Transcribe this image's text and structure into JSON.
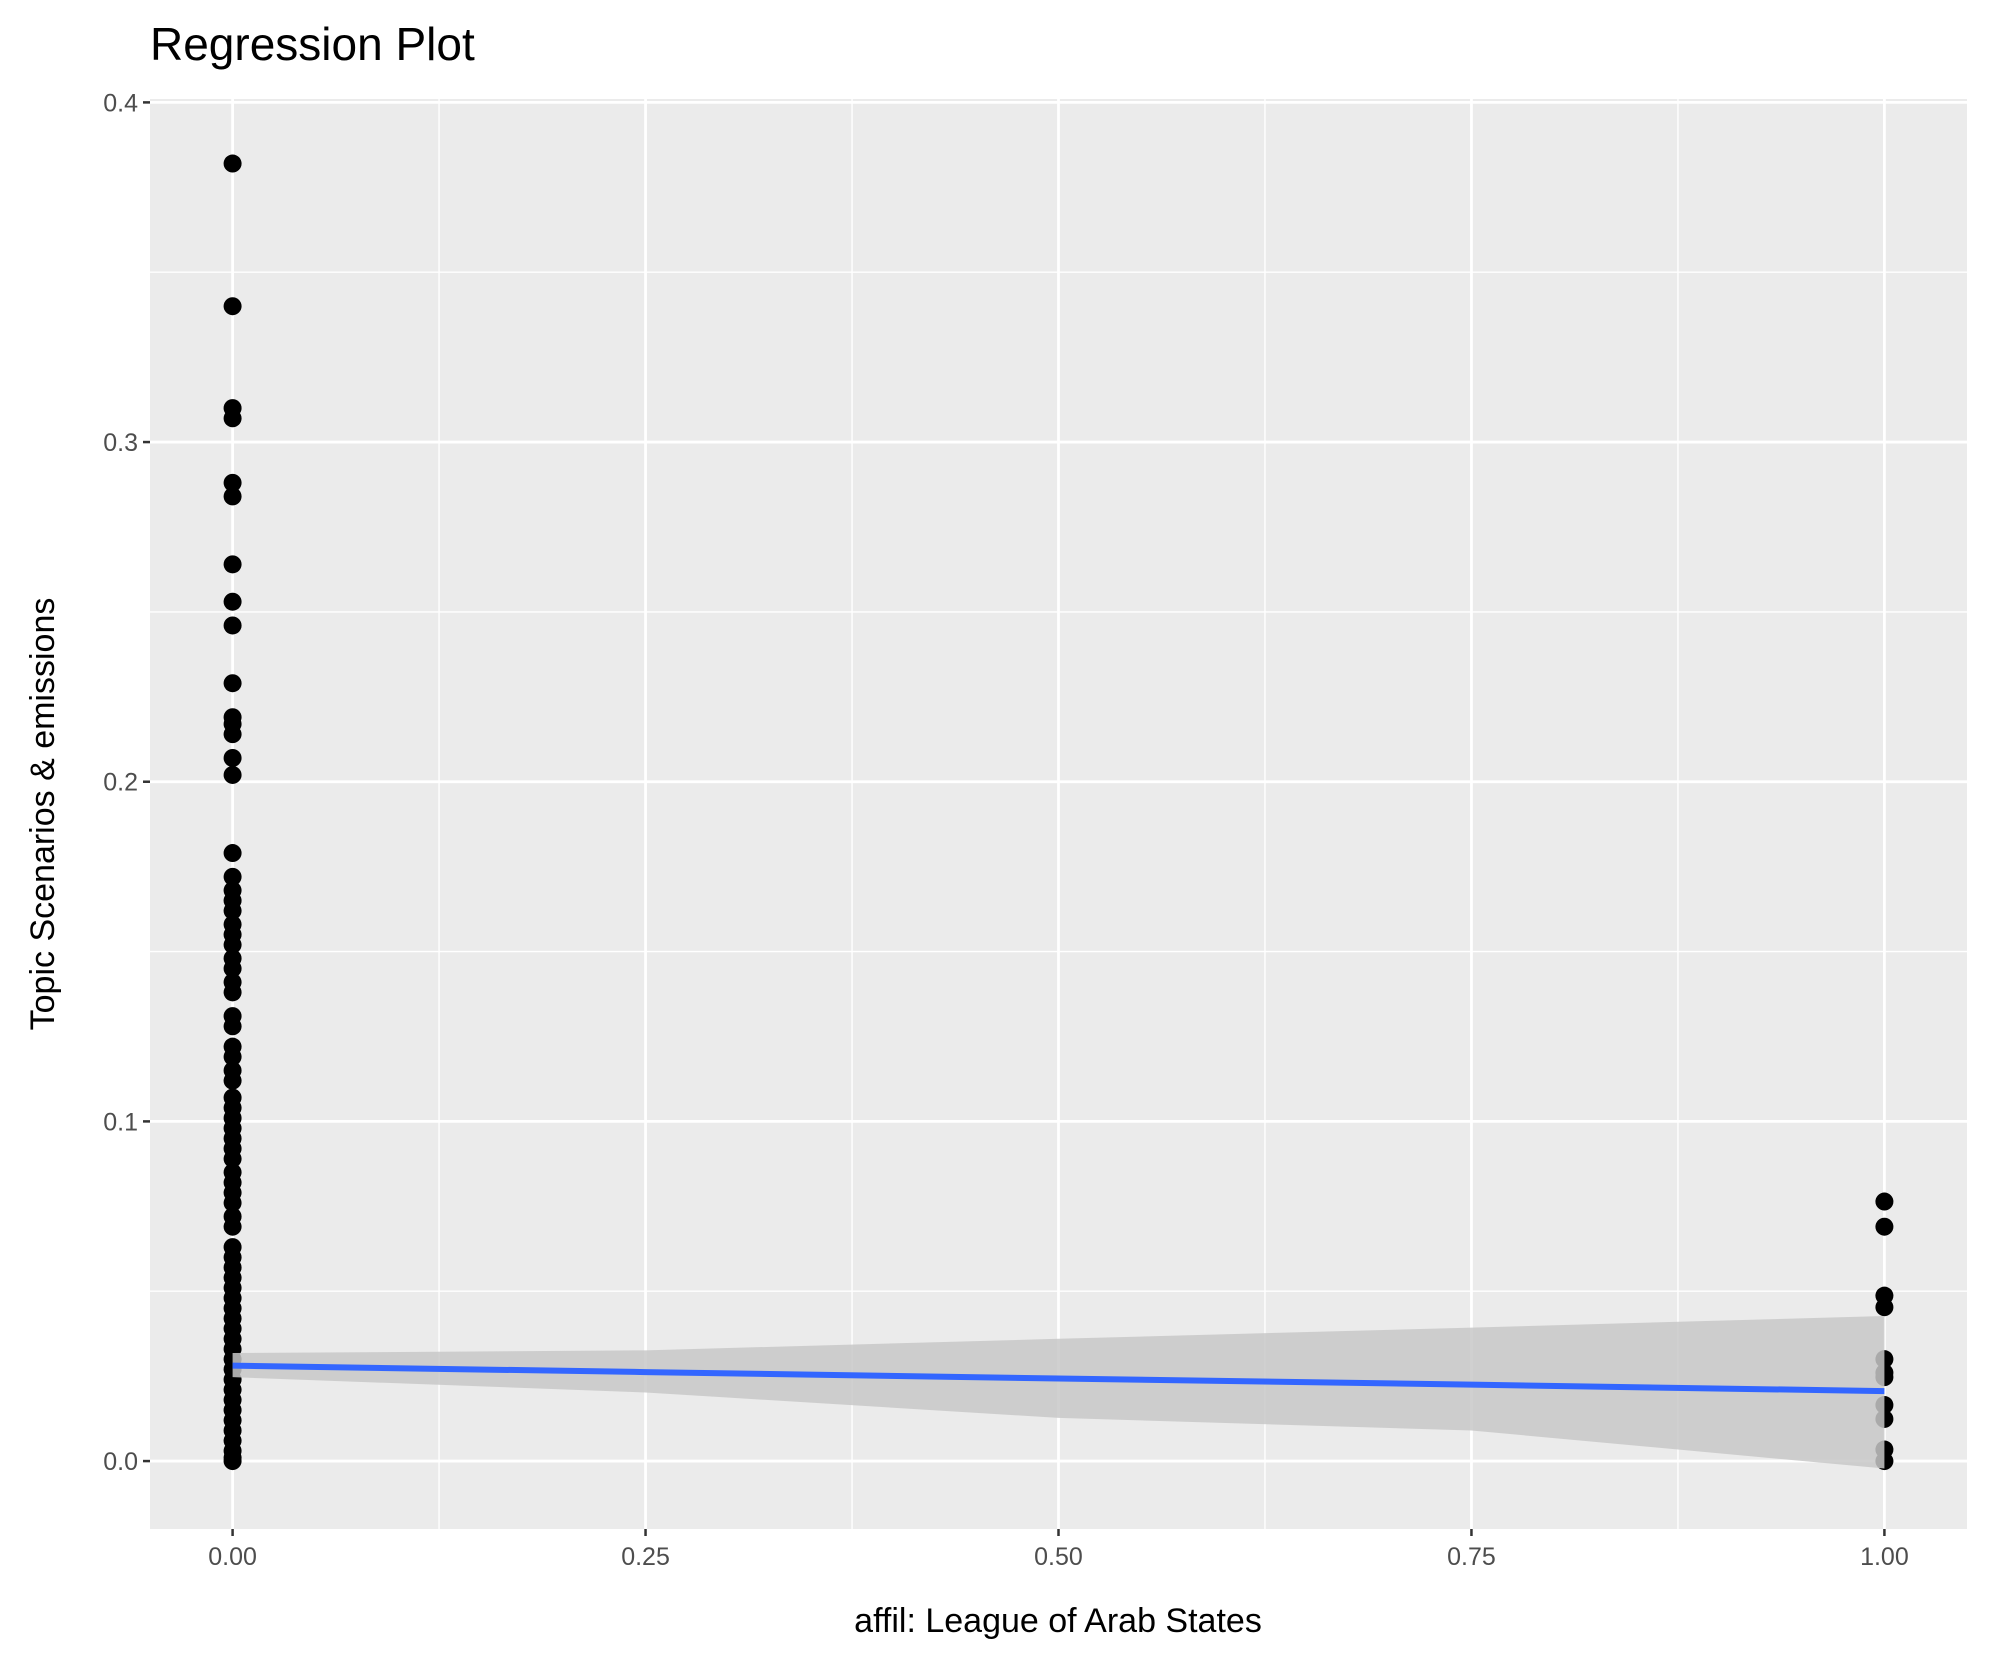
{
  "chart_data": {
    "type": "scatter",
    "title": "Regression Plot",
    "x_label": "affil: League of Arab States",
    "y_label": "Topic Scenarios & emissions",
    "xlim": [
      -0.05,
      1.05
    ],
    "ylim": [
      -0.02,
      0.401
    ],
    "xticks": [
      {
        "value": 0,
        "label": "0.00"
      },
      {
        "value": 0.25,
        "label": "0.25"
      },
      {
        "value": 0.5,
        "label": "0.50"
      },
      {
        "value": 0.75,
        "label": "0.75"
      },
      {
        "value": 1,
        "label": "1.00"
      }
    ],
    "yticks": [
      {
        "value": 0,
        "label": "0.0"
      },
      {
        "value": 0.1,
        "label": "0.1"
      },
      {
        "value": 0.2,
        "label": "0.2"
      },
      {
        "value": 0.3,
        "label": "0.3"
      },
      {
        "value": 0.4,
        "label": "0.4"
      }
    ],
    "grid": true,
    "panel_color": "#ebebeb",
    "point_color": "#000000",
    "groups": [
      {
        "x": 0,
        "values": [
          0.382,
          0.34,
          0.31,
          0.307,
          0.288,
          0.284,
          0.264,
          0.253,
          0.246,
          0.229,
          0.219,
          0.217,
          0.214,
          0.207,
          0.202,
          0.179,
          0.172,
          0.168,
          0.165,
          0.162,
          0.158,
          0.155,
          0.152,
          0.148,
          0.145,
          0.141,
          0.138,
          0.131,
          0.128,
          0.122,
          0.119,
          0.115,
          0.112,
          0.107,
          0.104,
          0.101,
          0.098,
          0.095,
          0.092,
          0.089,
          0.085,
          0.082,
          0.079,
          0.076,
          0.072,
          0.069,
          0.063,
          0.06,
          0.057,
          0.054,
          0.051,
          0.048,
          0.045,
          0.042,
          0.039,
          0.036,
          0.033,
          0.03,
          0.027,
          0.024,
          0.021,
          0.018,
          0.015,
          0.012,
          0.009,
          0.006,
          0.003,
          0.001,
          0
        ]
      },
      {
        "x": 1,
        "values": [
          0.0764,
          0.069,
          0.0487,
          0.0453,
          0.03,
          0.026,
          0.0247,
          0.0165,
          0.0124,
          0.0034,
          0
        ]
      }
    ],
    "fit": {
      "color": "#3366ff",
      "band_color": "#c8c8c8",
      "x": [
        0,
        0.25,
        0.5,
        0.75,
        1
      ],
      "values": [
        0.0281,
        0.0262,
        0.0243,
        0.0225,
        0.0206
      ],
      "lower": [
        0.0247,
        0.0202,
        0.0127,
        0.009,
        -0.0022
      ],
      "upper": [
        0.0318,
        0.0326,
        0.036,
        0.0393,
        0.0427
      ]
    }
  }
}
